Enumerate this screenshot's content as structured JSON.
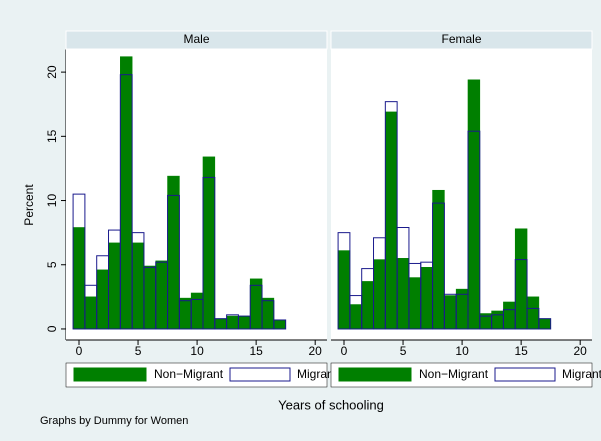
{
  "chart_data": {
    "type": "histogram",
    "y_label": "Percent",
    "x_label": "Years of schooling",
    "note": "Graphs by Dummy for Women",
    "bins": [
      -0.5,
      0.5,
      1.5,
      2.5,
      3.5,
      4.5,
      5.5,
      6.5,
      7.5,
      8.5,
      9.5,
      10.5,
      11.5,
      12.5,
      13.5,
      14.5,
      15.5,
      16.5,
      17.5
    ],
    "xlim": [
      -1.1,
      21
    ],
    "ylim": [
      -0.86,
      21.8
    ],
    "xticks": [
      0,
      5,
      10,
      15,
      20
    ],
    "yticks": [
      0,
      5,
      10,
      15,
      20
    ],
    "grid": false,
    "panels": [
      {
        "title": "Male",
        "series": [
          {
            "name": "Non−Migrant",
            "color": "#007f00",
            "values": [
              7.9,
              2.5,
              4.6,
              6.7,
              21.2,
              6.7,
              4.9,
              5.3,
              11.9,
              2.4,
              2.8,
              13.4,
              0.8,
              1.0,
              1.0,
              3.9,
              2.4,
              0.7
            ]
          },
          {
            "name": "Migrant",
            "color": "#1a1a8c",
            "values": [
              10.5,
              3.4,
              5.7,
              7.7,
              19.8,
              7.5,
              4.8,
              5.2,
              10.4,
              2.2,
              2.3,
              11.8,
              0.8,
              1.1,
              1.0,
              3.4,
              2.2,
              0.7
            ]
          }
        ]
      },
      {
        "title": "Female",
        "series": [
          {
            "name": "Non−Migrant",
            "color": "#007f00",
            "values": [
              6.1,
              1.9,
              3.7,
              5.4,
              16.9,
              5.5,
              4.0,
              4.8,
              10.8,
              2.6,
              3.1,
              19.4,
              1.2,
              1.4,
              2.1,
              7.8,
              2.5,
              0.8
            ]
          },
          {
            "name": "Migrant",
            "color": "#1a1a8c",
            "values": [
              7.5,
              2.6,
              4.7,
              7.1,
              17.7,
              7.9,
              5.1,
              5.2,
              9.8,
              2.7,
              2.7,
              15.4,
              1.0,
              1.1,
              1.5,
              5.4,
              1.6,
              0.8
            ]
          }
        ]
      }
    ]
  }
}
